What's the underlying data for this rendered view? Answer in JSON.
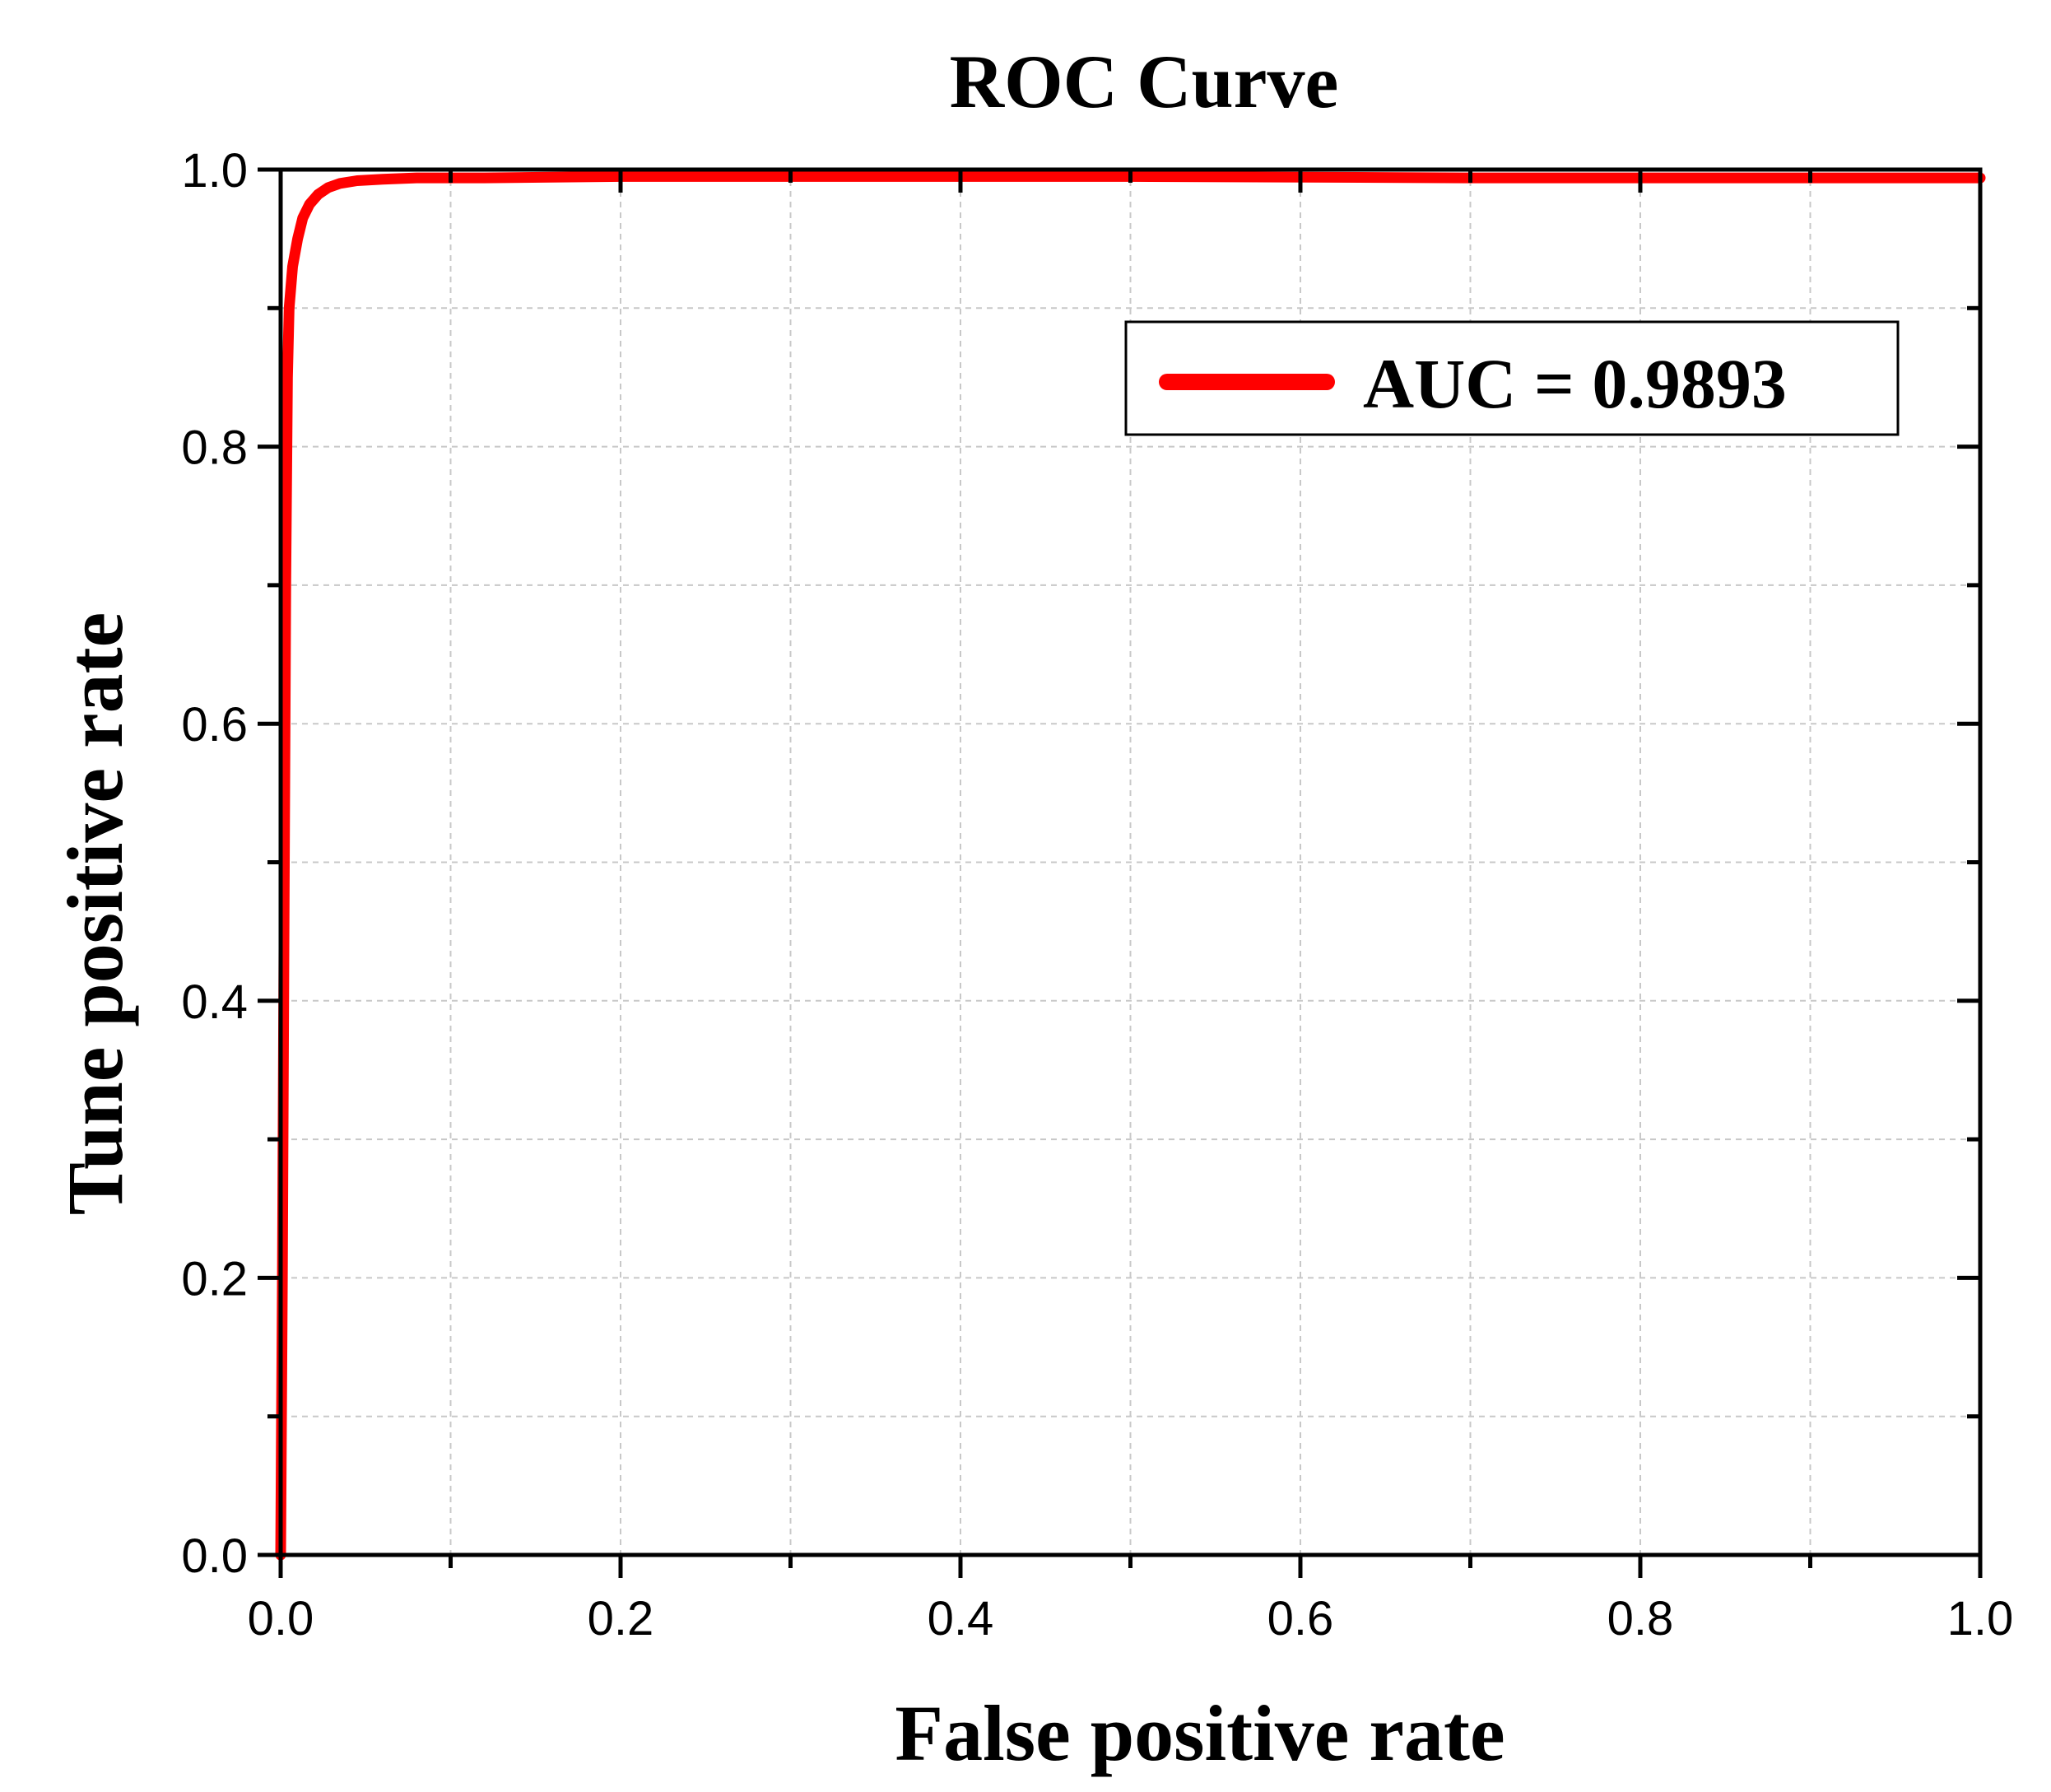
{
  "chart_data": {
    "type": "line",
    "title": "ROC Curve",
    "xlabel": "False positive rate",
    "ylabel": "Tune positive rate",
    "xlim": [
      0.0,
      1.0
    ],
    "ylim": [
      0.0,
      1.0
    ],
    "xticks": [
      0.0,
      0.2,
      0.4,
      0.6,
      0.8,
      1.0
    ],
    "yticks": [
      0.0,
      0.2,
      0.4,
      0.6,
      0.8,
      1.0
    ],
    "xtick_labels": [
      "0.0",
      "0.2",
      "0.4",
      "0.6",
      "0.8",
      "1.0"
    ],
    "ytick_labels": [
      "0.0",
      "0.2",
      "0.4",
      "0.6",
      "0.8",
      "1.0"
    ],
    "grid": true,
    "legend_position": "top-right",
    "series": [
      {
        "name": "AUC = 0.9893",
        "color": "#ff0000",
        "x": [
          0.0,
          0.001,
          0.002,
          0.003,
          0.004,
          0.005,
          0.007,
          0.01,
          0.013,
          0.017,
          0.022,
          0.028,
          0.035,
          0.045,
          0.06,
          0.08,
          0.12,
          0.2,
          0.35,
          0.5,
          0.7,
          0.85,
          1.0
        ],
        "y": [
          0.0,
          0.2,
          0.45,
          0.7,
          0.85,
          0.9,
          0.93,
          0.95,
          0.965,
          0.975,
          0.982,
          0.987,
          0.99,
          0.992,
          0.993,
          0.994,
          0.994,
          0.995,
          0.995,
          0.995,
          0.994,
          0.994,
          0.994
        ]
      }
    ]
  },
  "colors": {
    "curve": "#ff0000",
    "axes": "#000000",
    "grid": "#c8c8c8"
  }
}
